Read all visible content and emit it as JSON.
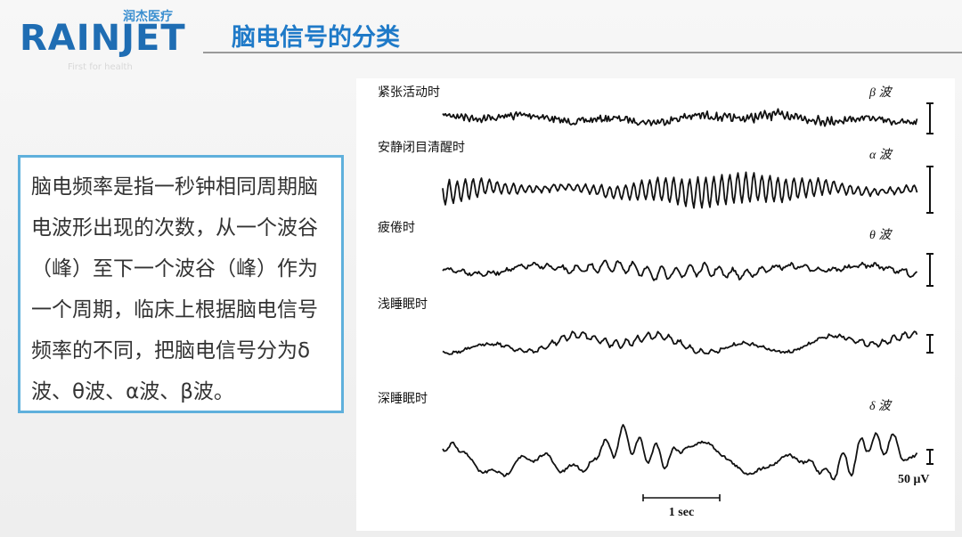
{
  "logo": {
    "cn": "润杰医疗",
    "en": "RAINJET",
    "tagline": "First for health"
  },
  "header": {
    "title": "脑电信号的分类"
  },
  "body": {
    "text": "脑电频率是指一秒钟相同周期脑电波形出现的次数，从一个波谷（峰）至下一个波谷（峰）作为一个周期，临床上根据脑电信号频率的不同，把脑电信号分为δ波、θ波、α波、β波。"
  },
  "figure": {
    "rows": [
      {
        "state": "紧张活动时",
        "wave": "β 波"
      },
      {
        "state": "安静闭目清醒时",
        "wave": "α 波"
      },
      {
        "state": "疲倦时",
        "wave": "θ 波"
      },
      {
        "state": "浅睡眠时"
      },
      {
        "state": "深睡眠时",
        "wave": "δ 波"
      }
    ],
    "time_scale": "1 sec",
    "amplitude_scale": "50 μV"
  }
}
